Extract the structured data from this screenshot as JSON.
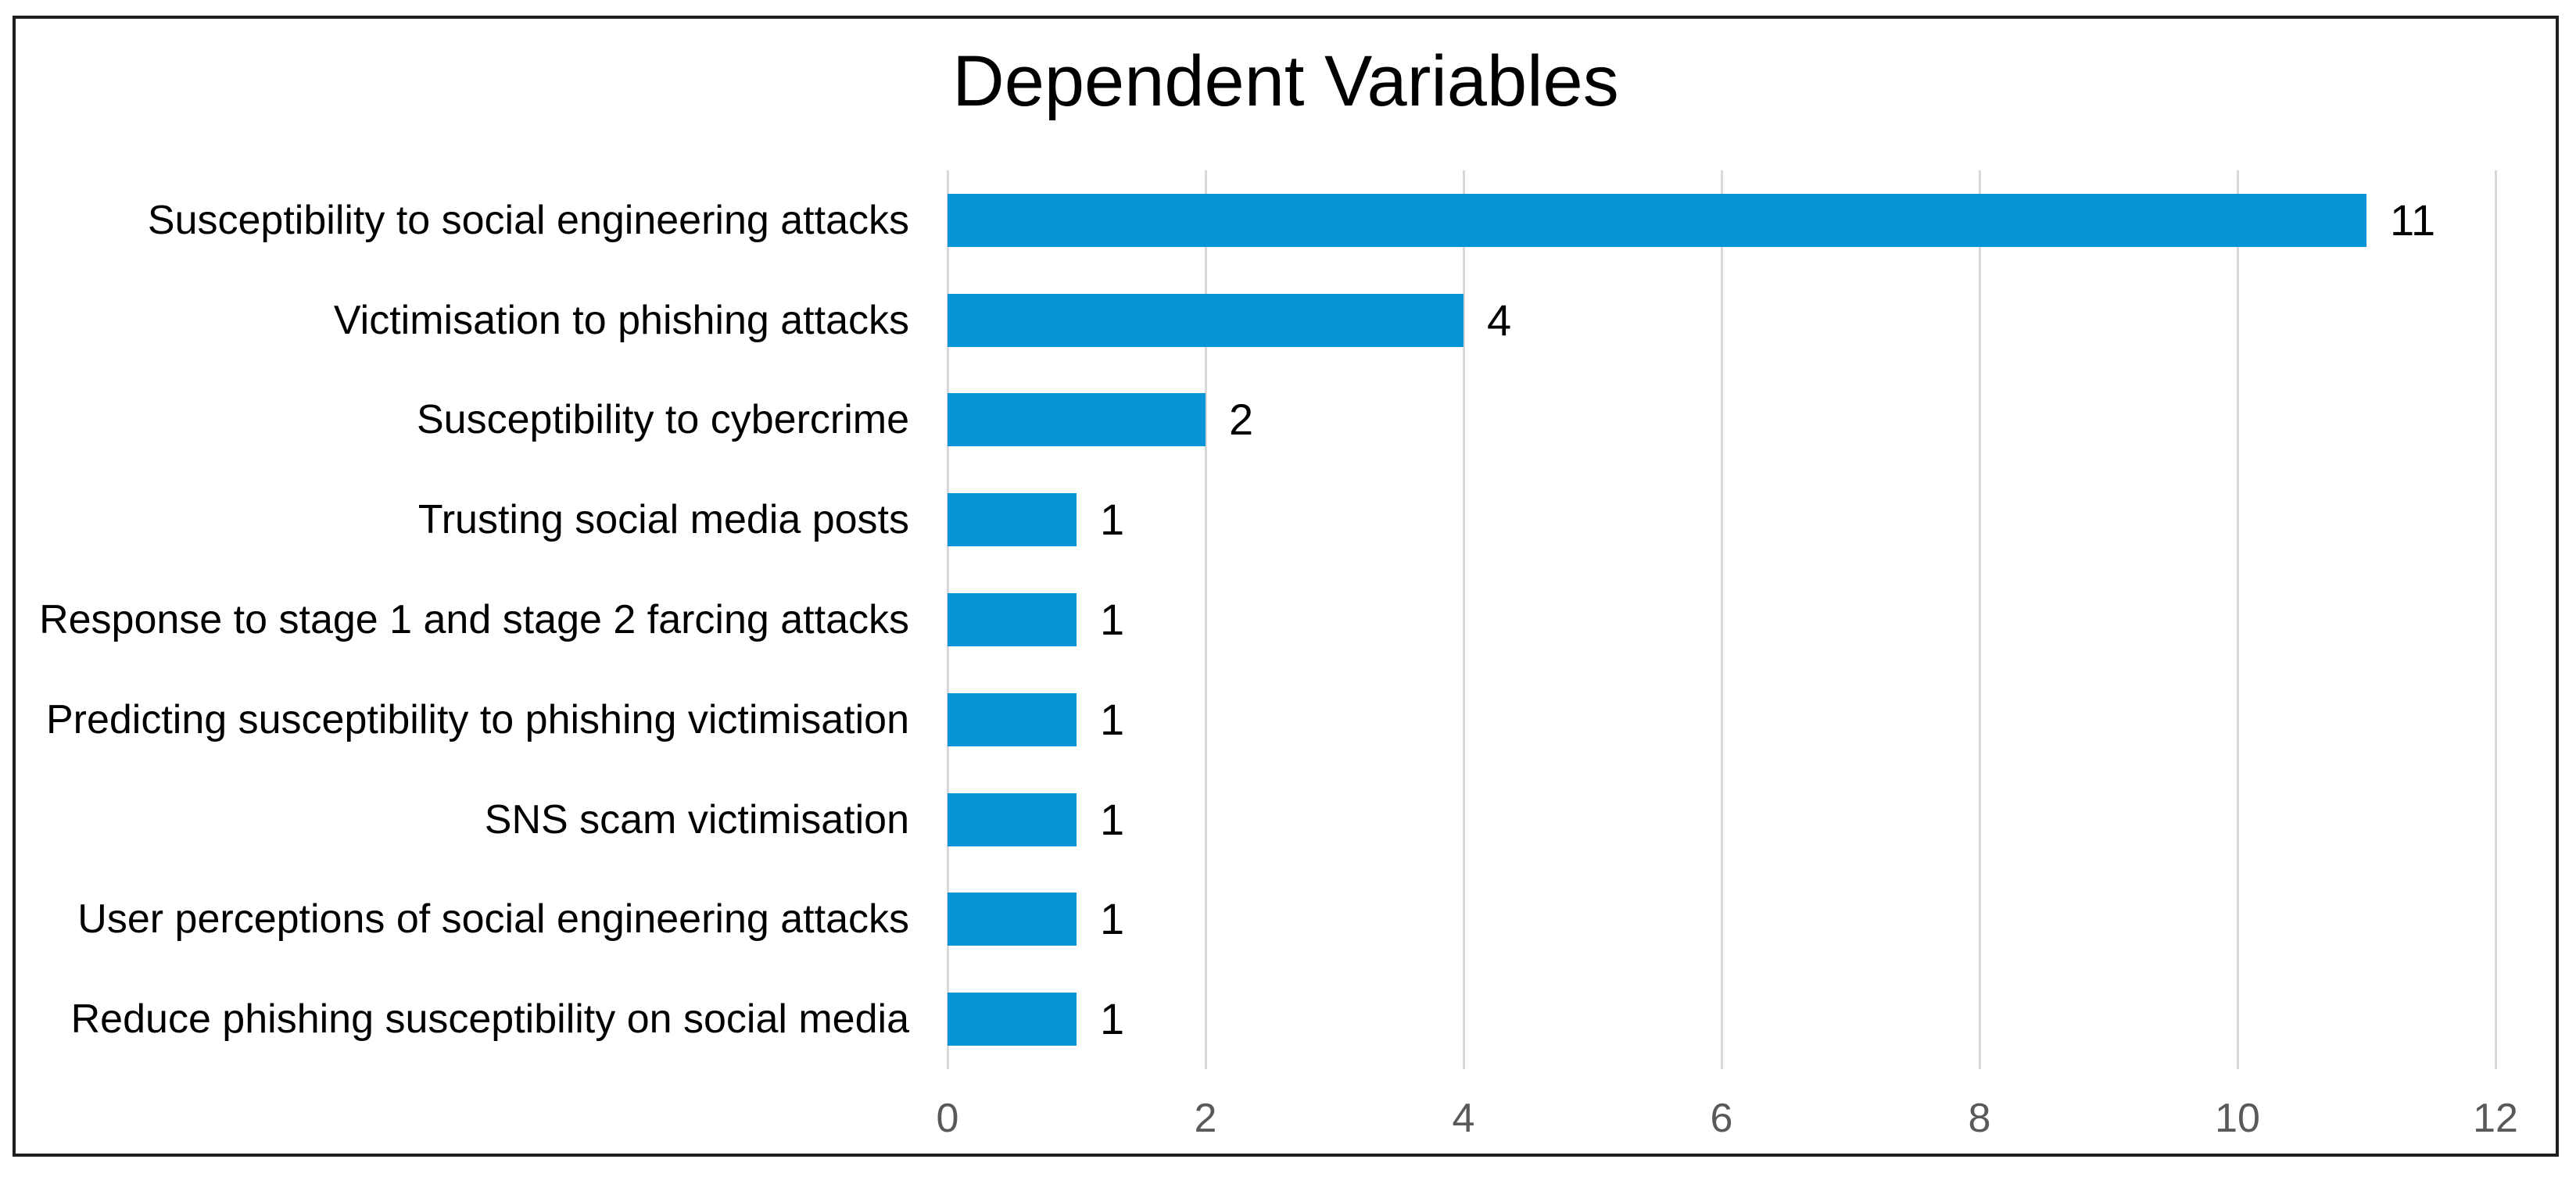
{
  "figure": {
    "title": "Dependent Variables"
  },
  "colors": {
    "bar": "#0895D8",
    "gridline": "#D9D9D9",
    "tick_label": "#595959",
    "text": "#000000",
    "frame_border": "#1F1F1F"
  },
  "chart_data": {
    "type": "bar",
    "orientation": "horizontal",
    "title": "Dependent Variables",
    "categories": [
      "Susceptibility to social engineering attacks",
      "Victimisation to phishing attacks",
      "Susceptibility to cybercrime",
      "Trusting social media posts",
      "Response to stage 1 and stage 2 farcing attacks",
      "Predicting susceptibility to phishing victimisation",
      "SNS scam victimisation",
      "User perceptions of social engineering attacks",
      "Reduce phishing susceptibility on social media"
    ],
    "values": [
      11,
      4,
      2,
      1,
      1,
      1,
      1,
      1,
      1
    ],
    "data_labels": [
      "11",
      "4",
      "2",
      "1",
      "1",
      "1",
      "1",
      "1",
      "1"
    ],
    "xlabel": "",
    "ylabel": "",
    "xlim": [
      0,
      12
    ],
    "x_ticks": [
      0,
      2,
      4,
      6,
      8,
      10,
      12
    ],
    "x_tick_labels": [
      "0",
      "2",
      "4",
      "6",
      "8",
      "10",
      "12"
    ],
    "grid": true,
    "legend": false
  }
}
